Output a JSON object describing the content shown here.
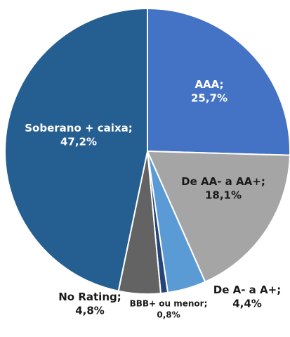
{
  "chart_data": {
    "type": "pie",
    "categories": [
      "AAA;",
      "De AA- a AA+;",
      "De A- a A+;",
      "BBB+ ou menor;",
      "No Rating;",
      "Soberano + caixa;"
    ],
    "values": [
      25.7,
      18.1,
      4.4,
      0.8,
      4.8,
      47.2
    ],
    "value_labels": [
      "25,7%",
      "18,1%",
      "4,4%",
      "0,8%",
      "4,8%",
      "47,2%"
    ],
    "colors": [
      "#4472c4",
      "#a5a5a5",
      "#5b9bd5",
      "#264478",
      "#636363",
      "#255e91"
    ]
  }
}
